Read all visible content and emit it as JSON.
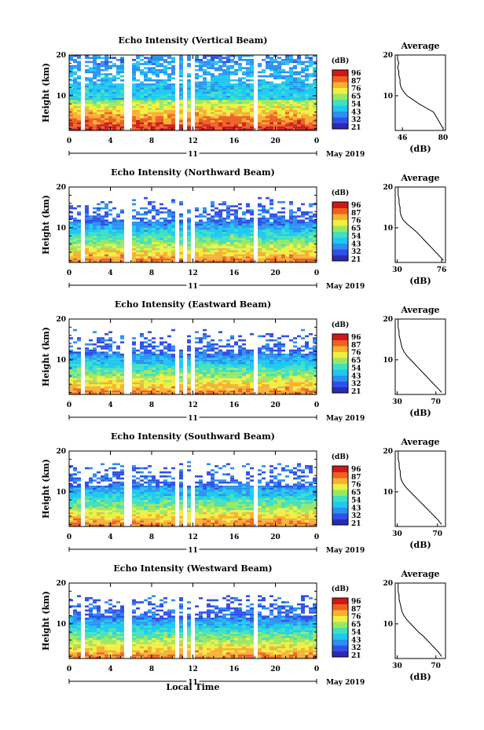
{
  "x_axis": {
    "ticks": [
      "0",
      "4",
      "8",
      "12",
      "16",
      "20",
      "0"
    ],
    "date_day": "11",
    "month_year": "May 2019",
    "label": "Local Time"
  },
  "y_axis": {
    "label": "Height (km)",
    "ticks": [
      "10",
      "20"
    ]
  },
  "colorbar_unit": "(dB)",
  "average_title": "Average",
  "average_xlabel": "(dB)",
  "colormap": [
    "#2a2ab8",
    "#3050e8",
    "#2c90f0",
    "#1ec8f0",
    "#40e0c0",
    "#9ae860",
    "#f0f040",
    "#f8b030",
    "#f06020",
    "#d01818"
  ],
  "chart_data": [
    {
      "type": "heatmap",
      "title": "Echo Intensity (Vertical Beam)",
      "colorbar_ticks": [
        "96",
        "87",
        "76",
        "65",
        "54",
        "43",
        "32",
        "21"
      ],
      "average_ticks": [
        "46",
        "80"
      ],
      "average_xlim": [
        40,
        82
      ],
      "average_profile": [
        [
          80,
          2
        ],
        [
          78,
          3
        ],
        [
          76,
          4
        ],
        [
          74,
          5
        ],
        [
          72,
          6
        ],
        [
          66,
          7
        ],
        [
          60,
          8
        ],
        [
          55,
          9
        ],
        [
          50,
          10
        ],
        [
          47,
          11
        ],
        [
          45,
          12
        ],
        [
          44,
          13
        ],
        [
          44,
          14
        ],
        [
          43,
          15
        ],
        [
          43,
          16
        ],
        [
          42,
          17
        ],
        [
          43,
          18
        ],
        [
          42,
          19
        ],
        [
          42,
          20
        ]
      ]
    },
    {
      "type": "heatmap",
      "title": "Echo Intensity (Northward Beam)",
      "colorbar_ticks": [
        "96",
        "87",
        "76",
        "65",
        "54",
        "43",
        "32",
        "21"
      ],
      "average_ticks": [
        "30",
        "76"
      ],
      "average_xlim": [
        28,
        80
      ],
      "average_profile": [
        [
          78,
          2
        ],
        [
          74,
          3
        ],
        [
          70,
          4
        ],
        [
          66,
          5
        ],
        [
          62,
          6
        ],
        [
          58,
          7
        ],
        [
          54,
          8
        ],
        [
          50,
          9
        ],
        [
          45,
          10
        ],
        [
          40,
          11
        ],
        [
          36,
          12
        ],
        [
          34,
          13
        ],
        [
          33,
          14
        ],
        [
          33,
          15
        ],
        [
          32,
          16
        ],
        [
          32,
          17
        ],
        [
          31,
          18
        ],
        [
          31,
          19
        ],
        [
          31,
          20
        ]
      ]
    },
    {
      "type": "heatmap",
      "title": "Echo Intensity (Eastward Beam)",
      "colorbar_ticks": [
        "96",
        "87",
        "76",
        "65",
        "54",
        "43",
        "32",
        "21"
      ],
      "average_ticks": [
        "30",
        "70"
      ],
      "average_xlim": [
        28,
        80
      ],
      "average_profile": [
        [
          76,
          2
        ],
        [
          72,
          3
        ],
        [
          68,
          4
        ],
        [
          64,
          5
        ],
        [
          60,
          6
        ],
        [
          56,
          7
        ],
        [
          52,
          8
        ],
        [
          48,
          9
        ],
        [
          44,
          10
        ],
        [
          40,
          11
        ],
        [
          37,
          12
        ],
        [
          35,
          13
        ],
        [
          34,
          14
        ],
        [
          33,
          15
        ],
        [
          32,
          16
        ],
        [
          32,
          17
        ],
        [
          31,
          18
        ],
        [
          31,
          19
        ],
        [
          31,
          20
        ]
      ]
    },
    {
      "type": "heatmap",
      "title": "Echo Intensity (Southward Beam)",
      "colorbar_ticks": [
        "96",
        "87",
        "76",
        "65",
        "54",
        "43",
        "32",
        "21"
      ],
      "average_ticks": [
        "30",
        "70"
      ],
      "average_xlim": [
        28,
        78
      ],
      "average_profile": [
        [
          74,
          2
        ],
        [
          71,
          3
        ],
        [
          67,
          4
        ],
        [
          63,
          5
        ],
        [
          59,
          6
        ],
        [
          55,
          7
        ],
        [
          51,
          8
        ],
        [
          47,
          9
        ],
        [
          43,
          10
        ],
        [
          39,
          11
        ],
        [
          36,
          12
        ],
        [
          34,
          13
        ],
        [
          33,
          14
        ],
        [
          33,
          15
        ],
        [
          32,
          16
        ],
        [
          32,
          17
        ],
        [
          31,
          18
        ],
        [
          31,
          19
        ],
        [
          31,
          20
        ]
      ]
    },
    {
      "type": "heatmap",
      "title": "Echo Intensity (Westward Beam)",
      "colorbar_ticks": [
        "96",
        "87",
        "76",
        "65",
        "54",
        "43",
        "32",
        "21"
      ],
      "average_ticks": [
        "30",
        "70"
      ],
      "average_xlim": [
        28,
        80
      ],
      "average_profile": [
        [
          76,
          2
        ],
        [
          73,
          3
        ],
        [
          69,
          4
        ],
        [
          65,
          5
        ],
        [
          61,
          6
        ],
        [
          57,
          7
        ],
        [
          52,
          8
        ],
        [
          48,
          9
        ],
        [
          44,
          10
        ],
        [
          40,
          11
        ],
        [
          37,
          12
        ],
        [
          35,
          13
        ],
        [
          34,
          14
        ],
        [
          33,
          15
        ],
        [
          32,
          16
        ],
        [
          32,
          17
        ],
        [
          31,
          18
        ],
        [
          31,
          19
        ],
        [
          31,
          20
        ]
      ]
    }
  ]
}
